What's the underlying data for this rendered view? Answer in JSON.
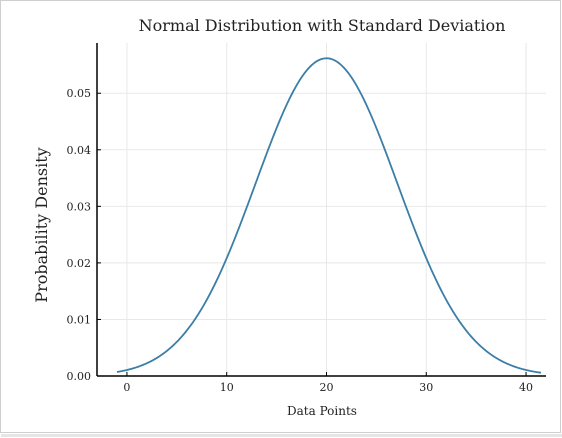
{
  "chart_data": {
    "type": "line",
    "title": "Normal Distribution with Standard Deviation",
    "xlabel": "Data Points",
    "ylabel": "Probability Density",
    "xlim": [
      -3,
      42
    ],
    "ylim": [
      0,
      0.058
    ],
    "x_ticks": [
      0,
      10,
      20,
      30,
      40
    ],
    "x_tick_labels": [
      "0",
      "10",
      "20",
      "30",
      "40"
    ],
    "y_ticks": [
      0,
      0.01,
      0.02,
      0.03,
      0.04,
      0.05
    ],
    "y_tick_labels": [
      "0.00",
      "0.01",
      "0.02",
      "0.03",
      "0.04",
      "0.05"
    ],
    "grid": true,
    "series": [
      {
        "color": "#3b7ea8",
        "distribution": {
          "mean": 20,
          "std_dev": 7.1
        },
        "x_range": [
          -1,
          41.5
        ]
      }
    ],
    "colors": {
      "line": "#3b7ea8",
      "grid": "#e8e8e8",
      "axis": "#000000"
    }
  }
}
